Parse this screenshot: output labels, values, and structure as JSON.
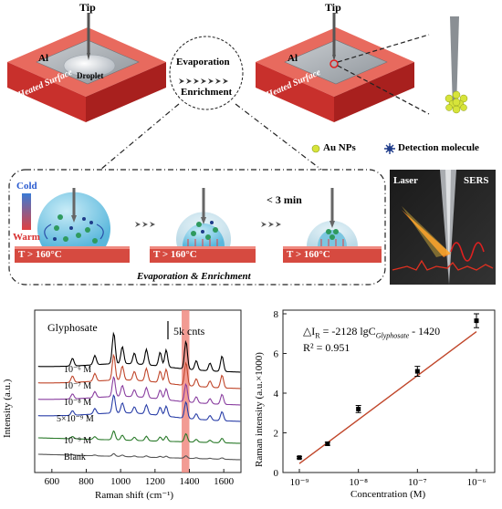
{
  "top": {
    "left_tip_label": "Tip",
    "right_tip_label": "Tip",
    "left_al_label": "Al",
    "right_al_label": "Al",
    "droplet_label": "Droplet",
    "left_surface_label": "Heated Surface",
    "right_surface_label": "Heated Surface",
    "evaporation_label": "Evaporation",
    "enrichment_label": "Enrichment"
  },
  "legend": {
    "au_label": "Au NPs",
    "molecule_label": "Detection molecule",
    "au_color": "#d7e43a",
    "molecule_color": "#1f3c8a"
  },
  "process": {
    "cold_label": "Cold",
    "warm_label": "Warm",
    "temp_labels": [
      "T > 160°C",
      "T > 160°C",
      "T > 160°C"
    ],
    "time_label": "< 3 min",
    "caption": "Evaporation & Enrichment"
  },
  "photo": {
    "laser_label": "Laser",
    "sers_label": "SERS"
  },
  "chart_data": [
    {
      "type": "line",
      "title": "Glyphosate",
      "xlabel": "Raman shift (cm⁻¹)",
      "ylabel": "Intensity (a.u.)",
      "xlim": [
        500,
        1700
      ],
      "xticks": [
        "600",
        "800",
        "1000",
        "1200",
        "1400",
        "1600"
      ],
      "scale_bar_label": "5k cnts",
      "highlight_band_cm": [
        1355,
        1400
      ],
      "highlight_color": "#f08a80",
      "series": [
        {
          "name": "10⁻⁶ M",
          "color": "#000000"
        },
        {
          "name": "10⁻⁷ M",
          "color": "#c0462a"
        },
        {
          "name": "10⁻⁸ M",
          "color": "#8a3fa0"
        },
        {
          "name": "5×10⁻⁹ M",
          "color": "#2a3fa8"
        },
        {
          "name": "10⁻⁹ M",
          "color": "#2a7a2a"
        },
        {
          "name": "Blank",
          "color": "#555555"
        }
      ]
    },
    {
      "type": "scatter",
      "xlabel": "Concentration (M)",
      "ylabel": "Raman intensity (a.u.×1000)",
      "xscale": "log",
      "xlim": [
        1e-09,
        1e-06
      ],
      "ylim": [
        0,
        8
      ],
      "xtick_labels": [
        "10⁻⁹",
        "10⁻⁸",
        "10⁻⁷",
        "10⁻⁶"
      ],
      "ytick_labels": [
        "0",
        "2",
        "4",
        "6",
        "8"
      ],
      "equation": "△I R = -2128 lgC Glyphosate - 1420",
      "equation_main": "△I",
      "equation_sub": "R",
      "equation_mid": " = -2128 lgC",
      "equation_sub2": "Glyphosate",
      "equation_tail": " - 1420",
      "r2": "R² = 0.951",
      "points": [
        {
          "x": 1e-09,
          "y": 0.75,
          "err": 0.05
        },
        {
          "x": 3e-09,
          "y": 1.45,
          "err": 0.08
        },
        {
          "x": 1e-08,
          "y": 3.2,
          "err": 0.18
        },
        {
          "x": 1e-07,
          "y": 5.1,
          "err": 0.25
        },
        {
          "x": 1e-06,
          "y": 7.65,
          "err": 0.35
        }
      ],
      "fit_color": "#c0462a"
    }
  ]
}
